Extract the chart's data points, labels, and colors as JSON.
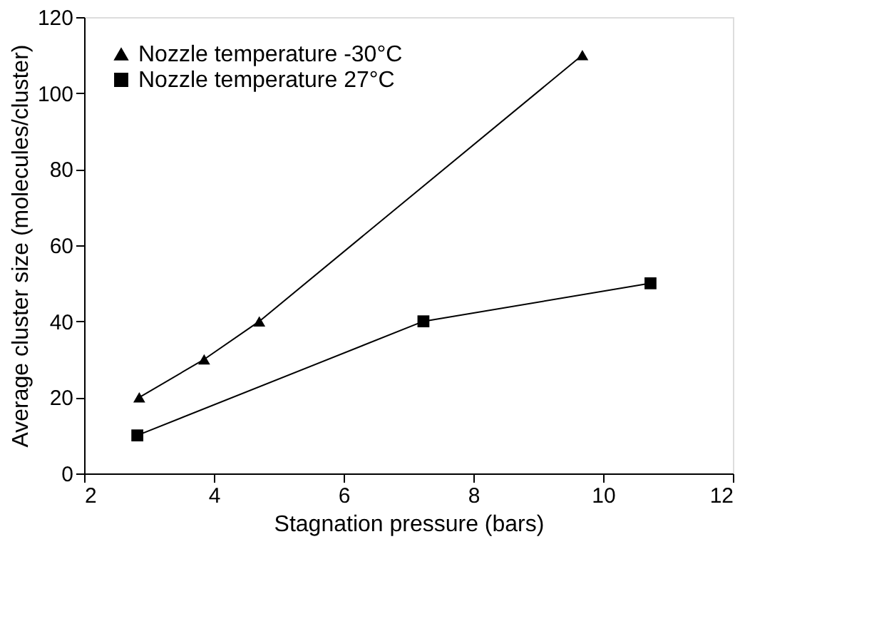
{
  "chart_data": {
    "type": "line",
    "xlabel": "Stagnation pressure (bars)",
    "ylabel": "Average cluster size (molecules/cluster)",
    "xlim": [
      2,
      12
    ],
    "xticks": [
      2,
      4,
      6,
      8,
      10,
      12
    ],
    "ylim": [
      0,
      120
    ],
    "yticks": [
      0,
      20,
      40,
      60,
      80,
      100,
      120
    ],
    "grid": false,
    "legend": "top left",
    "series": [
      {
        "name": "Nozzle temperature -30°C",
        "color": "#000000",
        "marker": "triangle",
        "x": [
          2.85,
          3.85,
          4.7,
          9.68
        ],
        "values": [
          20,
          30,
          40,
          110
        ]
      },
      {
        "name": "Nozzle temperature 27°C",
        "color": "#000000",
        "marker": "square",
        "x": [
          2.82,
          7.23,
          10.73
        ],
        "values": [
          10,
          40,
          50
        ]
      }
    ]
  }
}
